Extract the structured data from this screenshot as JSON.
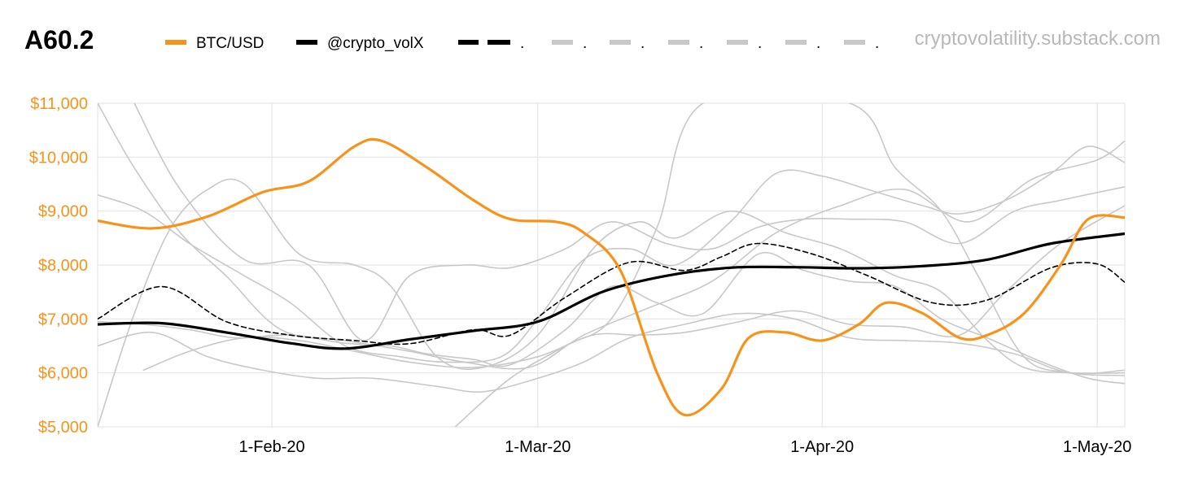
{
  "chart_data": {
    "type": "line",
    "title": "A60.2",
    "source": "cryptovolatility.substack.com",
    "xlabel": "",
    "ylabel": "",
    "xlim": [
      "2020-01-13",
      "2020-05-04"
    ],
    "ylim": [
      5000,
      11000
    ],
    "grid": true,
    "legend_position": "top",
    "x_tick_labels": [
      {
        "date": "2020-02-01",
        "label": "1-Feb-20"
      },
      {
        "date": "2020-03-01",
        "label": "1-Mar-20"
      },
      {
        "date": "2020-04-01",
        "label": "1-Apr-20"
      },
      {
        "date": "2020-05-01",
        "label": "1-May-20"
      }
    ],
    "y_tick_labels": [
      {
        "value": 5000,
        "label": "$5,000"
      },
      {
        "value": 6000,
        "label": "$6,000"
      },
      {
        "value": 7000,
        "label": "$7,000"
      },
      {
        "value": 8000,
        "label": "$8,000"
      },
      {
        "value": 9000,
        "label": "$9,000"
      },
      {
        "value": 10000,
        "label": "$10,000"
      },
      {
        "value": 11000,
        "label": "$11,000"
      }
    ],
    "colors": {
      "btc": "#F7931A",
      "vol": "#000000",
      "dashed": "#000000",
      "gray": "#C8C8C8",
      "grid": "#E6E6E6",
      "axis_label": "#F7931A",
      "source": "#B8B8B8"
    },
    "legend": [
      {
        "label": "BTC/USD",
        "color": "#F7931A",
        "style": "solid"
      },
      {
        "label": "@crypto_volX",
        "color": "#000000",
        "style": "solid"
      },
      {
        "label": ".",
        "color": "#000000",
        "style": "dashed"
      },
      {
        "label": ".",
        "color": "#C8C8C8",
        "style": "dashed"
      },
      {
        "label": ".",
        "color": "#C8C8C8",
        "style": "dashed"
      },
      {
        "label": ".",
        "color": "#C8C8C8",
        "style": "dashed"
      },
      {
        "label": ".",
        "color": "#C8C8C8",
        "style": "dashed"
      },
      {
        "label": ".",
        "color": "#C8C8C8",
        "style": "dashed"
      },
      {
        "label": ".",
        "color": "#C8C8C8",
        "style": "dashed"
      }
    ],
    "series": [
      {
        "name": "BTC/USD",
        "color": "#F7931A",
        "style": "btc",
        "x": [
          "2020-01-13",
          "2020-01-19",
          "2020-01-25",
          "2020-01-31",
          "2020-02-05",
          "2020-02-10",
          "2020-02-13",
          "2020-02-18",
          "2020-02-23",
          "2020-02-27",
          "2020-03-03",
          "2020-03-06",
          "2020-03-10",
          "2020-03-14",
          "2020-03-17",
          "2020-03-21",
          "2020-03-24",
          "2020-03-28",
          "2020-04-01",
          "2020-04-05",
          "2020-04-08",
          "2020-04-12",
          "2020-04-16",
          "2020-04-19",
          "2020-04-23",
          "2020-04-27",
          "2020-04-30",
          "2020-05-04"
        ],
        "y": [
          8820,
          8680,
          8900,
          9350,
          9550,
          10200,
          10300,
          9800,
          9200,
          8850,
          8800,
          8600,
          7900,
          6000,
          5220,
          5700,
          6650,
          6750,
          6600,
          6900,
          7300,
          7100,
          6650,
          6700,
          7100,
          8000,
          8850,
          8880
        ]
      },
      {
        "name": "@crypto_volX",
        "color": "#000000",
        "style": "vol",
        "x": [
          "2020-01-13",
          "2020-01-20",
          "2020-01-27",
          "2020-02-03",
          "2020-02-09",
          "2020-02-16",
          "2020-02-23",
          "2020-03-01",
          "2020-03-08",
          "2020-03-15",
          "2020-03-22",
          "2020-03-29",
          "2020-04-05",
          "2020-04-12",
          "2020-04-19",
          "2020-04-26",
          "2020-05-04"
        ],
        "y": [
          6900,
          6920,
          6750,
          6550,
          6450,
          6620,
          6780,
          6950,
          7500,
          7800,
          7950,
          7960,
          7940,
          7980,
          8100,
          8400,
          8580
        ]
      },
      {
        "color": "#000000",
        "style": "dashed",
        "x": [
          "2020-01-13",
          "2020-01-20",
          "2020-01-27",
          "2020-02-03",
          "2020-02-10",
          "2020-02-16",
          "2020-02-23",
          "2020-02-27",
          "2020-03-04",
          "2020-03-11",
          "2020-03-17",
          "2020-03-21",
          "2020-03-25",
          "2020-03-31",
          "2020-04-06",
          "2020-04-13",
          "2020-04-19",
          "2020-04-26",
          "2020-05-01",
          "2020-05-04"
        ],
        "y": [
          7000,
          7600,
          6950,
          6700,
          6600,
          6540,
          6800,
          6700,
          7400,
          8050,
          7900,
          8150,
          8400,
          8200,
          7800,
          7300,
          7350,
          7950,
          8020,
          7680
        ]
      },
      {
        "color": "#C8C8C8",
        "style": "gray",
        "x": [
          "2020-01-13",
          "2020-01-17",
          "2020-01-22",
          "2020-01-27",
          "2020-02-02",
          "2020-02-09",
          "2020-02-16",
          "2020-02-22",
          "2020-02-29",
          "2020-03-06",
          "2020-03-13",
          "2020-03-20",
          "2020-03-27",
          "2020-04-03",
          "2020-04-10",
          "2020-04-17",
          "2020-04-24",
          "2020-05-01",
          "2020-05-04"
        ],
        "y": [
          11000,
          9800,
          8600,
          7800,
          6800,
          6600,
          6400,
          6200,
          6100,
          6700,
          7200,
          7700,
          8600,
          9100,
          9400,
          8800,
          9600,
          9950,
          10300
        ]
      },
      {
        "color": "#C8C8C8",
        "style": "gray",
        "x": [
          "2020-01-13",
          "2020-01-18",
          "2020-01-23",
          "2020-01-29",
          "2020-02-03",
          "2020-02-09",
          "2020-02-15",
          "2020-02-20",
          "2020-02-26",
          "2020-03-01",
          "2020-03-06",
          "2020-03-11",
          "2020-03-16",
          "2020-03-22",
          "2020-03-27",
          "2020-04-01",
          "2020-04-06",
          "2020-04-12",
          "2020-04-16",
          "2020-04-21",
          "2020-04-26",
          "2020-04-30",
          "2020-05-04"
        ],
        "y": [
          9300,
          9000,
          8400,
          7800,
          7300,
          6500,
          6300,
          6200,
          6300,
          7000,
          8100,
          8300,
          8000,
          8800,
          9700,
          9650,
          9400,
          9100,
          8950,
          9200,
          9700,
          10200,
          9900
        ]
      },
      {
        "color": "#C8C8C8",
        "style": "gray",
        "x": [
          "2020-01-13",
          "2020-01-17",
          "2020-01-21",
          "2020-01-25",
          "2020-01-29",
          "2020-02-04",
          "2020-02-10",
          "2020-02-14",
          "2020-02-19",
          "2020-02-24",
          "2020-03-01",
          "2020-03-07",
          "2020-03-12",
          "2020-03-16",
          "2020-03-22",
          "2020-03-28",
          "2020-04-03",
          "2020-04-09",
          "2020-04-14",
          "2020-04-19",
          "2020-04-23",
          "2020-04-28",
          "2020-05-04"
        ],
        "y": [
          5000,
          7100,
          8700,
          9400,
          9500,
          8200,
          8000,
          7600,
          6300,
          6100,
          6700,
          8300,
          8800,
          8500,
          9000,
          8600,
          8300,
          7800,
          7500,
          6600,
          6100,
          6000,
          6000
        ]
      },
      {
        "color": "#C8C8C8",
        "style": "gray",
        "x": [
          "2020-01-18",
          "2020-01-23",
          "2020-01-29",
          "2020-02-04",
          "2020-02-10",
          "2020-02-16",
          "2020-02-23",
          "2020-03-01",
          "2020-03-07",
          "2020-03-12",
          "2020-03-17",
          "2020-03-23",
          "2020-03-29",
          "2020-04-04",
          "2020-04-10",
          "2020-04-16",
          "2020-04-21",
          "2020-04-27",
          "2020-05-04"
        ],
        "y": [
          6050,
          6400,
          6650,
          6600,
          6400,
          6200,
          6100,
          6300,
          6700,
          6700,
          6750,
          6950,
          7150,
          6900,
          6850,
          6700,
          7500,
          8400,
          9100
        ]
      },
      {
        "color": "#C8C8C8",
        "style": "gray",
        "x": [
          "2020-01-13",
          "2020-01-19",
          "2020-01-25",
          "2020-01-31",
          "2020-02-06",
          "2020-02-12",
          "2020-02-19",
          "2020-02-24",
          "2020-03-01",
          "2020-03-06",
          "2020-03-11",
          "2020-03-17",
          "2020-03-23",
          "2020-03-29",
          "2020-04-04",
          "2020-04-10",
          "2020-04-16",
          "2020-04-22",
          "2020-04-28",
          "2020-05-04"
        ],
        "y": [
          6500,
          6750,
          6300,
          6050,
          5900,
          5900,
          5750,
          5650,
          5900,
          6200,
          6650,
          6900,
          7100,
          7000,
          6650,
          6600,
          6550,
          6350,
          6000,
          6050
        ]
      },
      {
        "color": "#C8C8C8",
        "style": "gray",
        "x": [
          "2020-01-13",
          "2020-01-18",
          "2020-01-23",
          "2020-01-28",
          "2020-02-03",
          "2020-02-09",
          "2020-02-14",
          "2020-02-18",
          "2020-02-23",
          "2020-02-27",
          "2020-03-04",
          "2020-03-09",
          "2020-03-14",
          "2020-03-19",
          "2020-03-25",
          "2020-03-30",
          "2020-04-04",
          "2020-04-09",
          "2020-04-14",
          "2020-04-19",
          "2020-04-25",
          "2020-04-30",
          "2020-05-04"
        ],
        "y": [
          6950,
          6900,
          6800,
          6650,
          6700,
          6550,
          6500,
          6350,
          6250,
          6150,
          6800,
          7600,
          7300,
          7100,
          8200,
          7900,
          7700,
          7600,
          7000,
          6650,
          6200,
          5900,
          5800
        ]
      },
      {
        "color": "#C8C8C8",
        "style": "gray",
        "x": [
          "2020-01-17",
          "2020-01-22",
          "2020-01-29",
          "2020-02-05",
          "2020-02-11",
          "2020-02-16",
          "2020-02-22",
          "2020-02-27",
          "2020-03-04",
          "2020-03-09",
          "2020-03-15",
          "2020-03-20",
          "2020-03-25",
          "2020-03-30",
          "2020-04-04",
          "2020-04-10",
          "2020-04-16",
          "2020-04-22",
          "2020-04-27",
          "2020-05-04"
        ],
        "y": [
          11000,
          9400,
          8100,
          8000,
          6600,
          7800,
          8000,
          7950,
          8300,
          8800,
          8400,
          8300,
          8700,
          8850,
          8850,
          8800,
          8400,
          9000,
          9200,
          9450
        ]
      },
      {
        "color": "#C8C8C8",
        "style": "gray",
        "x": [
          "2020-02-21",
          "2020-02-27",
          "2020-03-04",
          "2020-03-09",
          "2020-03-14",
          "2020-03-19",
          "2020-04-04",
          "2020-04-09",
          "2020-04-14",
          "2020-04-18",
          "2020-04-23",
          "2020-04-28",
          "2020-05-04"
        ],
        "y": [
          5000,
          5900,
          6500,
          7000,
          8700,
          11000,
          11000,
          9800,
          9000,
          7800,
          6300,
          6000,
          5950
        ]
      }
    ]
  }
}
